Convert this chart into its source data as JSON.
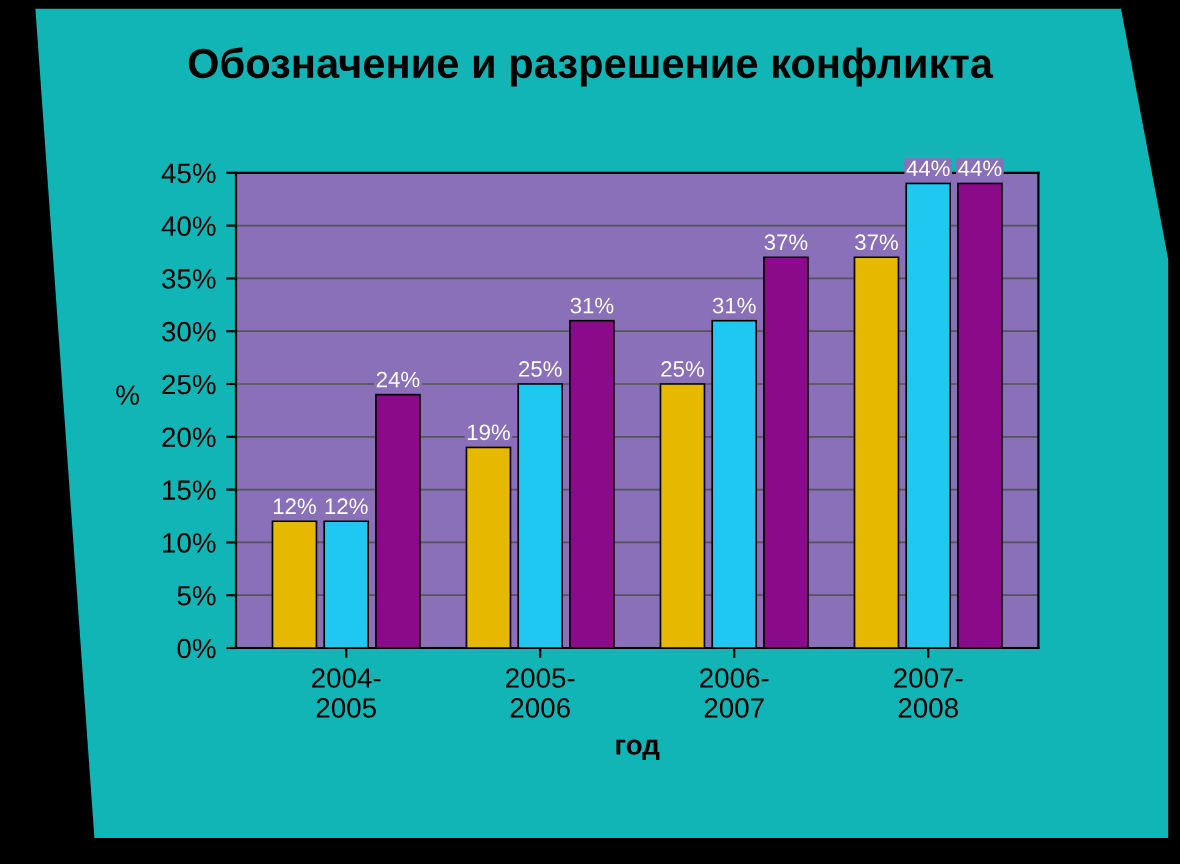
{
  "chart_data": {
    "type": "bar",
    "title": "Обозначение и разрешение конфликта",
    "xlabel": "год",
    "ylabel": "%",
    "categories": [
      "2004-\n2005",
      "2005-\n2006",
      "2006-\n2007",
      "2007-\n2008"
    ],
    "series": [
      {
        "color": "#e6b800",
        "values": [
          12,
          19,
          25,
          37
        ],
        "value_labels": [
          "12%",
          "19%",
          "25%",
          "37%"
        ]
      },
      {
        "color": "#1ec8f0",
        "values": [
          12,
          25,
          31,
          44
        ],
        "value_labels": [
          "12%",
          "25%",
          "31%",
          "44%"
        ]
      },
      {
        "color": "#8a0a8a",
        "values": [
          24,
          31,
          37,
          44
        ],
        "value_labels": [
          "24%",
          "31%",
          "37%",
          "44%"
        ]
      }
    ],
    "ylim": [
      0,
      45
    ],
    "yticks": [
      {
        "value": 0,
        "label": "0%"
      },
      {
        "value": 5,
        "label": "5%"
      },
      {
        "value": 10,
        "label": "10%"
      },
      {
        "value": 15,
        "label": "15%"
      },
      {
        "value": 20,
        "label": "20%"
      },
      {
        "value": 25,
        "label": "25%"
      },
      {
        "value": 30,
        "label": "30%"
      },
      {
        "value": 35,
        "label": "35%"
      },
      {
        "value": 40,
        "label": "40%"
      },
      {
        "value": 45,
        "label": "45%"
      }
    ],
    "grid": "y"
  }
}
